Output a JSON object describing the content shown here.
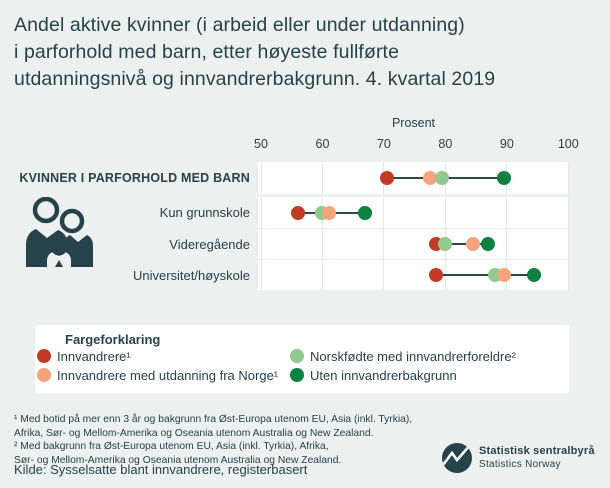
{
  "title_lines": [
    "Andel aktive kvinner (i arbeid eller under utdanning)",
    "i parforhold med barn, etter høyeste fullførte",
    "utdanningsnivå og innvandrerbakgrunn. 4. kvartal 2019"
  ],
  "chart_data": {
    "type": "scatter",
    "subtype": "dumbbell-dot-plot",
    "xlabel": "Prosent",
    "xlim": [
      50,
      100
    ],
    "ticks": [
      50,
      60,
      70,
      80,
      90,
      100
    ],
    "grid": true,
    "categories": [
      "KVINNER I PARFORHOLD MED BARN",
      "Kun grunnskole",
      "Videregående",
      "Universitet/høyskole"
    ],
    "series": [
      {
        "name": "Innvandrere¹",
        "color": "#c13b26",
        "values": [
          70.5,
          56,
          78.5,
          78.5
        ]
      },
      {
        "name": "Innvandrere med utdanning fra Norge¹",
        "color": "#f6a47d",
        "values": [
          77.5,
          61,
          84.5,
          89.5
        ]
      },
      {
        "name": "Norskfødte med innvandrerforeldre²",
        "color": "#91c98e",
        "values": [
          79.5,
          60,
          80,
          88
        ]
      },
      {
        "name": "Uten innvandrerbakgrunn",
        "color": "#0c8140",
        "values": [
          89.5,
          67,
          87,
          94.5
        ]
      }
    ]
  },
  "legend": {
    "title": "Fargeforklaring",
    "columns": [
      [
        {
          "label": "Innvandrere¹",
          "color": "#c13b26"
        },
        {
          "label": "Innvandrere med utdanning fra Norge¹",
          "color": "#f6a47d"
        }
      ],
      [
        {
          "label": "Norskfødte med innvandrerforeldre²",
          "color": "#91c98e"
        },
        {
          "label": "Uten innvandrerbakgrunn",
          "color": "#0c8140"
        }
      ]
    ]
  },
  "footnotes": {
    "lines": [
      "¹ Med botid på mer enn 3 år og bakgrunn fra Øst-Europa utenom EU, Asia (inkl. Tyrkia),",
      "Afrika, Sør- og Mellom-Amerika og Oseania utenom Australia og New Zealand.",
      "² Med bakgrunn fra Øst-Europa utenom EU, Asia (inkl. Tyrkia), Afrika,",
      "Sør- og Mellom-Amerika og Oseania utenom Australia og New Zealand."
    ],
    "source": "Kilde: Sysselsatte blant innvandrere, registerbasert"
  },
  "logo": {
    "name_no": "Statistisk sentralbyrå",
    "name_en": "Statistics Norway"
  },
  "colors": {
    "background": "#ecf0ee",
    "panel": "#ffffff",
    "text": "#26424a",
    "grid": "#e4e8e7",
    "connector": "#2b4750",
    "red": "#c13b26",
    "orange": "#f6a47d",
    "light_green": "#91c98e",
    "dark_green": "#0c8140"
  }
}
